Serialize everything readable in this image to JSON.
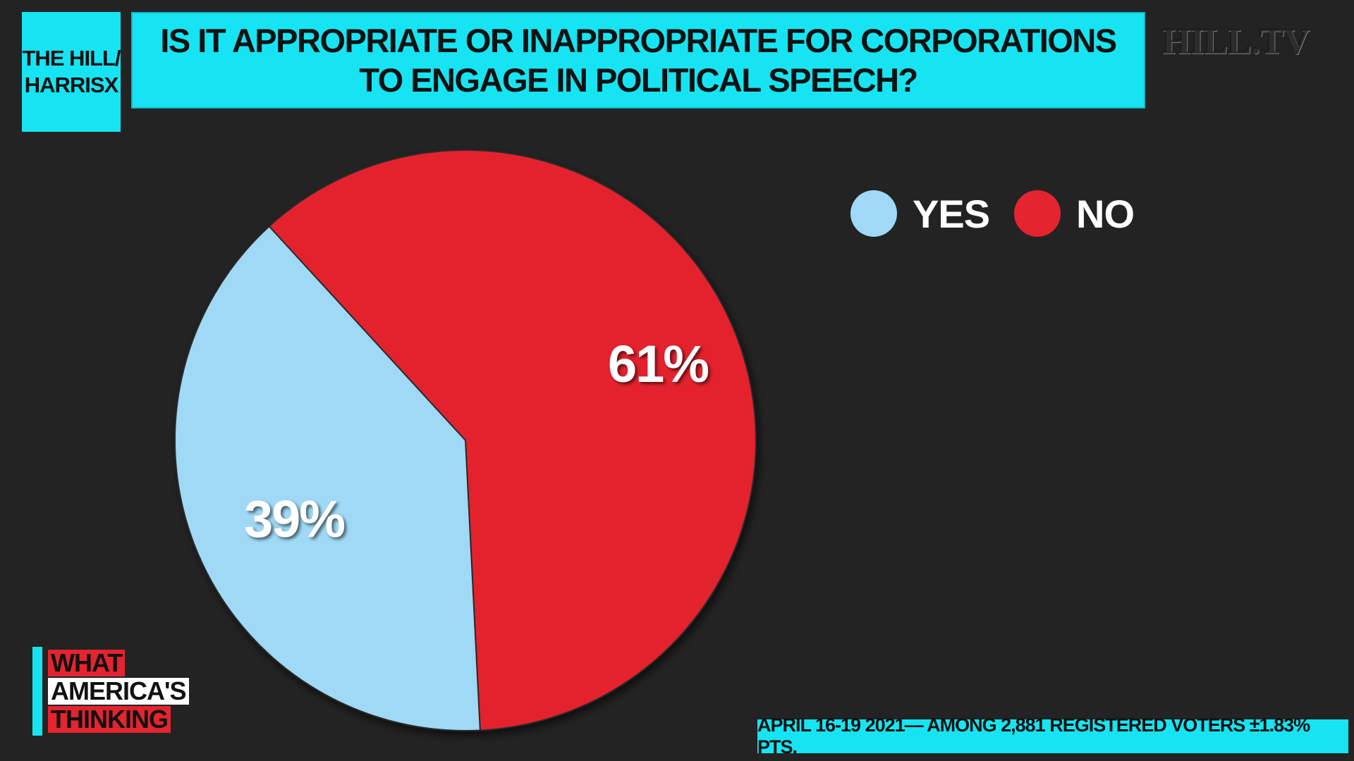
{
  "header": {
    "source": "THE HILL/ HARRISX",
    "title": "IS IT APPROPRIATE OR INAPPROPRIATE FOR CORPORATIONS TO ENGAGE IN POLITICAL SPEECH?",
    "brand": "HILL.TV"
  },
  "chart_data": {
    "type": "pie",
    "title": "IS IT APPROPRIATE OR INAPPROPRIATE FOR CORPORATIONS TO ENGAGE IN POLITICAL SPEECH?",
    "slices": [
      {
        "name": "YES",
        "value": 39,
        "label": "39%",
        "color": "#9fd9f6"
      },
      {
        "name": "NO",
        "value": 61,
        "label": "61%",
        "color": "#e4242f"
      }
    ],
    "legend_placement": "top-right"
  },
  "legend": {
    "yes_label": "YES",
    "no_label": "NO"
  },
  "badge": {
    "line1": "WHAT",
    "line2": "AMERICA'S",
    "line3": "THINKING"
  },
  "footnote": "APRIL 16-19 2021— AMONG 2,881 REGISTERED VOTERS ±1.83% PTS.",
  "colors": {
    "accent": "#16e4f2",
    "yes": "#9fd9f6",
    "no": "#e4242f",
    "background": "#232323"
  }
}
